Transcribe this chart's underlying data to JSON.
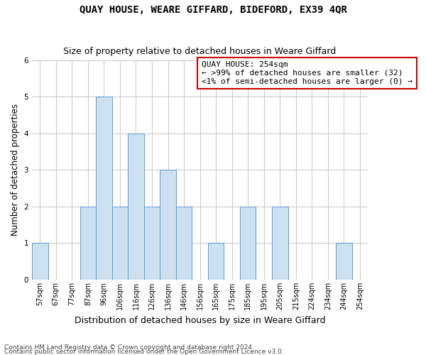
{
  "title": "QUAY HOUSE, WEARE GIFFARD, BIDEFORD, EX39 4QR",
  "subtitle": "Size of property relative to detached houses in Weare Giffard",
  "xlabel": "Distribution of detached houses by size in Weare Giffard",
  "ylabel": "Number of detached properties",
  "categories": [
    "57sqm",
    "67sqm",
    "77sqm",
    "87sqm",
    "96sqm",
    "106sqm",
    "116sqm",
    "126sqm",
    "136sqm",
    "146sqm",
    "156sqm",
    "165sqm",
    "175sqm",
    "185sqm",
    "195sqm",
    "205sqm",
    "215sqm",
    "224sqm",
    "234sqm",
    "244sqm",
    "254sqm"
  ],
  "values": [
    1,
    0,
    0,
    2,
    5,
    2,
    4,
    2,
    3,
    2,
    0,
    1,
    0,
    2,
    0,
    2,
    0,
    0,
    0,
    1,
    0
  ],
  "bar_color": "#cce0f0",
  "bar_edge_color": "#5b9bd5",
  "ylim": [
    0,
    6
  ],
  "yticks": [
    0,
    1,
    2,
    3,
    4,
    5,
    6
  ],
  "grid_color": "#cccccc",
  "annotation_box_color": "#cc0000",
  "annotation_lines": [
    "QUAY HOUSE: 254sqm",
    "← >99% of detached houses are smaller (32)",
    "<1% of semi-detached houses are larger (0) →"
  ],
  "footer_line1": "Contains HM Land Registry data © Crown copyright and database right 2024.",
  "footer_line2": "Contains public sector information licensed under the Open Government Licence v3.0.",
  "title_fontsize": 10,
  "subtitle_fontsize": 9,
  "ylabel_fontsize": 8.5,
  "xlabel_fontsize": 9,
  "tick_fontsize": 7,
  "annotation_fontsize": 8,
  "footer_fontsize": 6.5
}
